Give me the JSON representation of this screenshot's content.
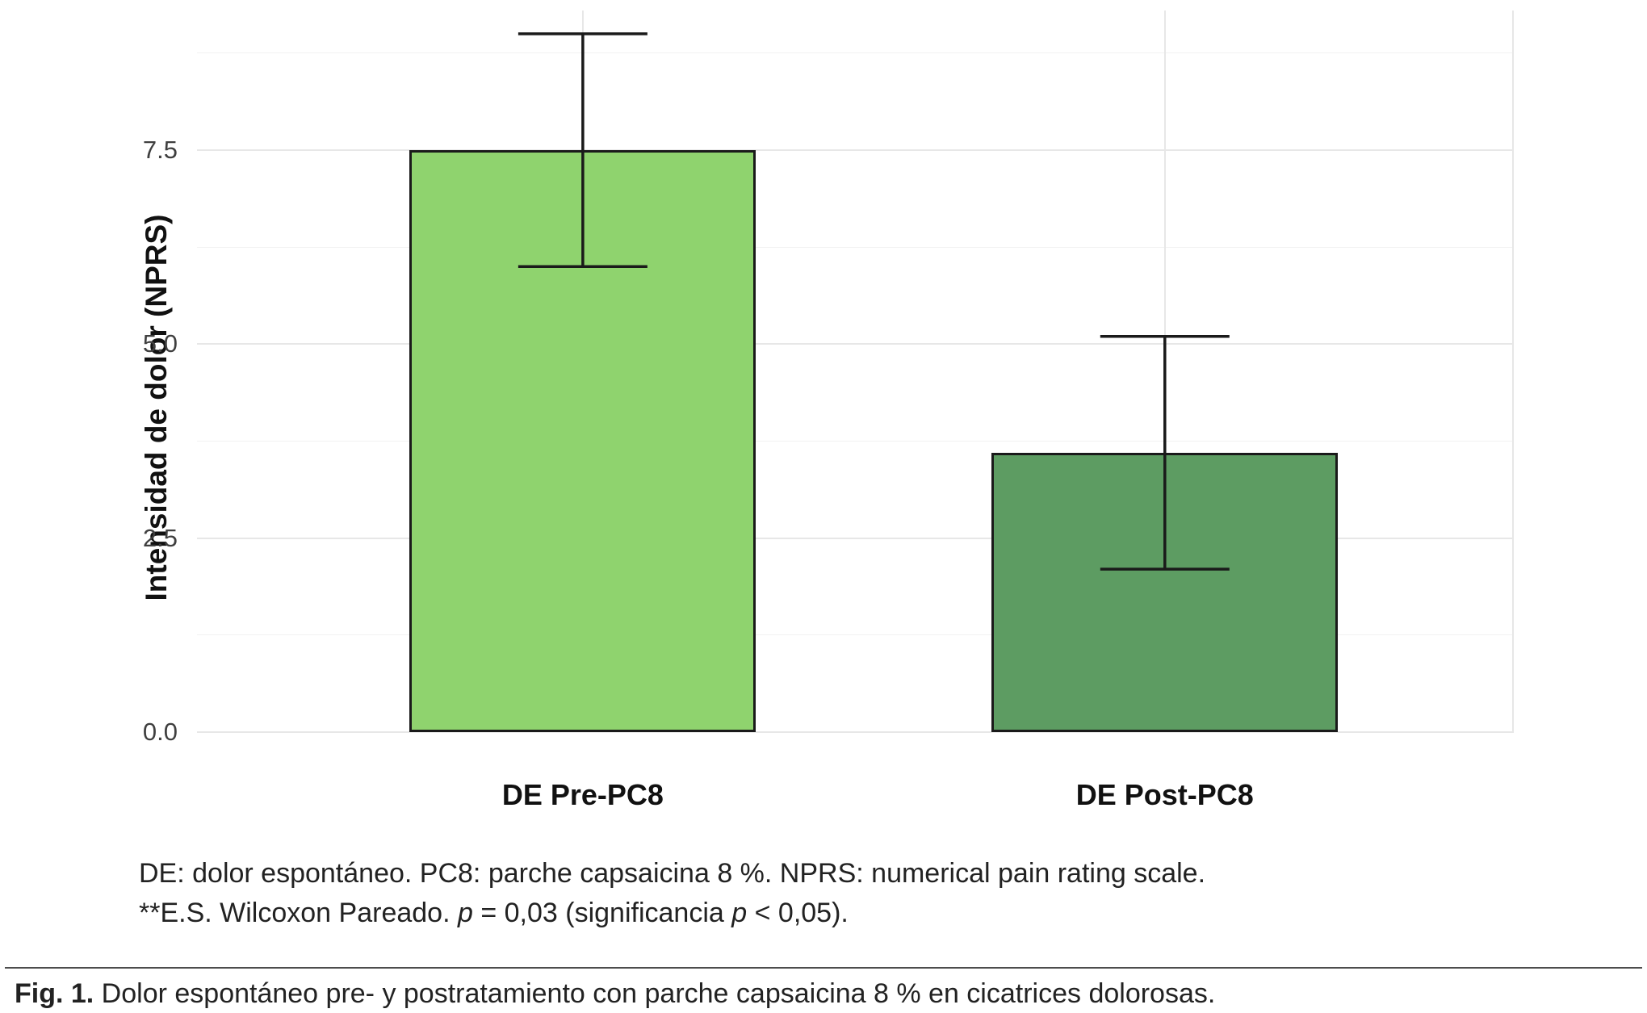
{
  "chart_data": {
    "type": "bar",
    "categories": [
      "DE Pre-PC8",
      "DE Post-PC8"
    ],
    "values": [
      7.5,
      3.6
    ],
    "error_low": [
      6.0,
      2.1
    ],
    "error_high": [
      9.0,
      5.1
    ],
    "bar_colors": [
      "#8fd36e",
      "#5d9c62"
    ],
    "bar_border_color": "#1a1a1a",
    "errorbar_color": "#1a1a1a",
    "title": "",
    "xlabel": "",
    "ylabel": "Intensidad de dolor (NPRS)",
    "yticks": [
      0.0,
      2.5,
      5.0,
      7.5
    ],
    "ytick_labels": [
      "0.0",
      "2.5",
      "5.0",
      "7.5"
    ],
    "minor_yticks": [
      1.25,
      3.75,
      6.25,
      8.75
    ],
    "ylim": [
      0,
      9.3
    ],
    "grid": "horizontal major+minor, light gray on white",
    "legend": "none"
  },
  "footnotes": {
    "line1": "DE: dolor espontáneo. PC8: parche capsaicina 8 %. NPRS: numerical pain rating scale.",
    "line2_parts": {
      "prefix": "**E.S. Wilcoxon Pareado. ",
      "p1": "p",
      "mid": " = 0,03 (significancia ",
      "p2": "p",
      "suffix": " < 0,05)."
    }
  },
  "caption": {
    "label": "Fig. 1.",
    "text": " Dolor espontáneo pre- y postratamiento con parche capsaicina 8 % en cicatrices dolorosas."
  }
}
